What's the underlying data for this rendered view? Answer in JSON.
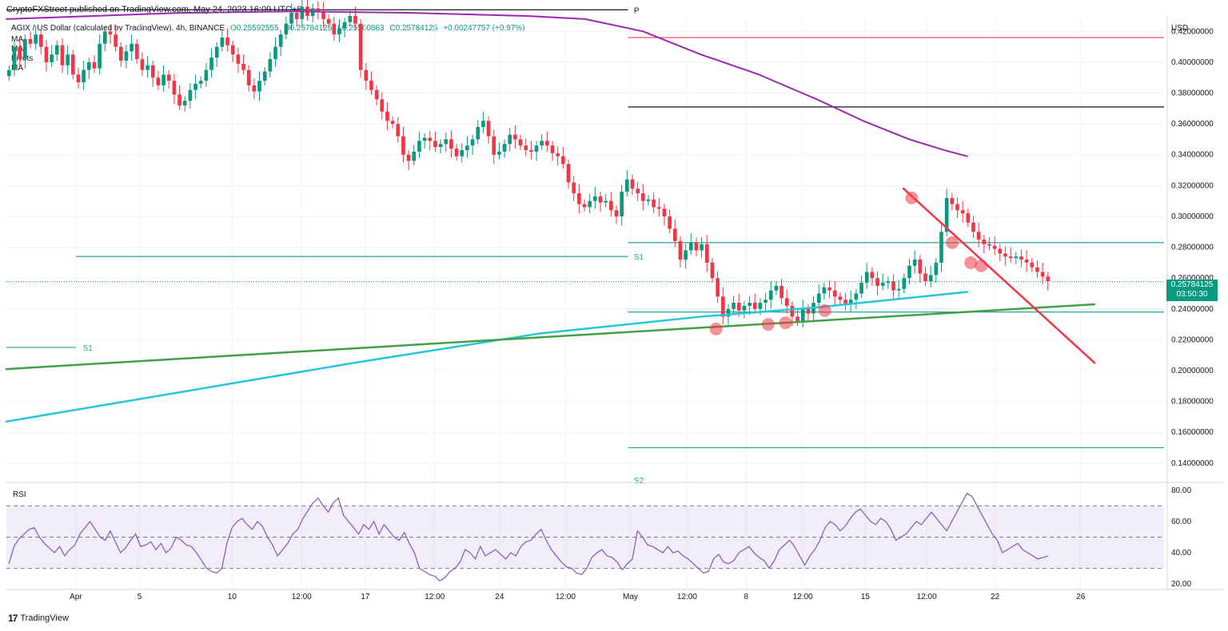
{
  "header": {
    "published": "CryptoFXStreet published on TradingView.com, May 24, 2023 16:09 UTC+8",
    "symbol": "AGIX / US Dollar (calculated by TradingView), 4h, BINANCE",
    "open": "O0.25592555",
    "high": "H0.25784125",
    "low": "L0.25560863",
    "close": "C0.25784125",
    "change": "+0.00247757 (+0.97%)",
    "indicators": [
      "MA",
      "MA",
      "Pivots",
      "MA"
    ]
  },
  "footer": {
    "brand": "TradingView"
  },
  "colors": {
    "up": "#089981",
    "down": "#f23645",
    "ma200": "#9c27b0",
    "ma_cyan": "#26c6da",
    "trend_green": "#43a047",
    "trend_red": "#f23645",
    "pivot_teal": "#26a69a",
    "pivot_r": "#f7525f",
    "pivot_black": "#131722",
    "rsi": "#7e57c2"
  },
  "chart_data": {
    "type": "candlestick",
    "currency_label": "USD",
    "y_ticks": [
      "0.42000000",
      "0.40000000",
      "0.38000000",
      "0.36000000",
      "0.34000000",
      "0.32000000",
      "0.30000000",
      "0.28000000",
      "0.26000000",
      "0.24000000",
      "0.22000000",
      "0.20000000",
      "0.18000000",
      "0.16000000",
      "0.14000000"
    ],
    "ylim": [
      0.128,
      0.43
    ],
    "x_ticks": [
      "Apr",
      "5",
      "10",
      "12:00",
      "17",
      "12:00",
      "24",
      "12:00",
      "May",
      "12:00",
      "8",
      "12:00",
      "15",
      "12:00",
      "22",
      "26"
    ],
    "last_price": "0.25784125",
    "countdown": "03:50:30",
    "pivot_labels": {
      "p": "P",
      "s1": "S1",
      "s1_old": "S1",
      "s2": "S2"
    },
    "pivot_levels": {
      "r1": 0.416,
      "p": 0.371,
      "s1_box": 0.283,
      "s1": 0.238,
      "s2": 0.15,
      "old_p": 0.434,
      "old_s1": 0.274,
      "old_s2": 0.215
    },
    "ma200_points": [
      [
        0,
        0.428
      ],
      [
        15,
        0.432
      ],
      [
        25,
        0.433
      ],
      [
        35,
        0.432
      ],
      [
        45,
        0.43
      ],
      [
        50,
        0.428
      ],
      [
        55,
        0.42
      ],
      [
        60,
        0.405
      ],
      [
        65,
        0.392
      ],
      [
        70,
        0.376
      ],
      [
        74,
        0.362
      ],
      [
        78,
        0.35
      ],
      [
        81,
        0.343
      ],
      [
        83,
        0.339
      ]
    ],
    "ma_cyan_points": [
      [
        0,
        0.167
      ],
      [
        30,
        0.205
      ],
      [
        46,
        0.224
      ],
      [
        60,
        0.235
      ],
      [
        70,
        0.241
      ],
      [
        83,
        0.251
      ]
    ],
    "green_trend": [
      [
        0,
        0.201
      ],
      [
        94,
        0.243
      ]
    ],
    "red_trend": [
      [
        77.5,
        0.318
      ],
      [
        94,
        0.205
      ]
    ],
    "touch_points": [
      [
        61.3,
        0.227
      ],
      [
        65.8,
        0.23
      ],
      [
        67.3,
        0.231
      ],
      [
        70.7,
        0.239
      ],
      [
        78.2,
        0.312
      ],
      [
        81.7,
        0.283
      ],
      [
        83.3,
        0.27
      ],
      [
        84.2,
        0.268
      ]
    ],
    "candles": [
      0.395,
      0.41,
      0.402,
      0.415,
      0.412,
      0.418,
      0.41,
      0.4,
      0.405,
      0.411,
      0.398,
      0.405,
      0.392,
      0.387,
      0.395,
      0.4,
      0.396,
      0.412,
      0.42,
      0.418,
      0.41,
      0.401,
      0.407,
      0.412,
      0.402,
      0.395,
      0.398,
      0.39,
      0.385,
      0.392,
      0.388,
      0.379,
      0.372,
      0.375,
      0.382,
      0.386,
      0.388,
      0.395,
      0.403,
      0.41,
      0.416,
      0.411,
      0.405,
      0.399,
      0.395,
      0.385,
      0.381,
      0.388,
      0.394,
      0.402,
      0.41,
      0.418,
      0.425,
      0.432,
      0.428,
      0.436,
      0.43,
      0.435,
      0.433,
      0.428,
      0.425,
      0.418,
      0.422,
      0.426,
      0.43,
      0.425,
      0.395,
      0.388,
      0.382,
      0.376,
      0.368,
      0.362,
      0.36,
      0.352,
      0.34,
      0.336,
      0.342,
      0.349,
      0.351,
      0.349,
      0.345,
      0.347,
      0.35,
      0.344,
      0.339,
      0.343,
      0.346,
      0.35,
      0.358,
      0.362,
      0.352,
      0.34,
      0.342,
      0.347,
      0.353,
      0.35,
      0.346,
      0.343,
      0.342,
      0.346,
      0.349,
      0.346,
      0.341,
      0.339,
      0.334,
      0.322,
      0.315,
      0.308,
      0.306,
      0.31,
      0.313,
      0.309,
      0.31,
      0.304,
      0.3,
      0.316,
      0.324,
      0.318,
      0.315,
      0.31,
      0.311,
      0.306,
      0.305,
      0.3,
      0.292,
      0.284,
      0.272,
      0.278,
      0.283,
      0.278,
      0.282,
      0.27,
      0.26,
      0.248,
      0.235,
      0.24,
      0.244,
      0.239,
      0.242,
      0.244,
      0.24,
      0.244,
      0.246,
      0.252,
      0.255,
      0.247,
      0.242,
      0.235,
      0.232,
      0.24,
      0.237,
      0.244,
      0.25,
      0.254,
      0.252,
      0.248,
      0.246,
      0.243,
      0.246,
      0.25,
      0.257,
      0.264,
      0.26,
      0.255,
      0.257,
      0.258,
      0.252,
      0.253,
      0.26,
      0.268,
      0.272,
      0.263,
      0.258,
      0.262,
      0.27,
      0.29,
      0.312,
      0.308,
      0.304,
      0.302,
      0.296,
      0.29,
      0.285,
      0.282,
      0.281,
      0.279,
      0.276,
      0.274,
      0.273,
      0.274,
      0.272,
      0.27,
      0.267,
      0.264,
      0.261,
      0.258
    ],
    "rsi": {
      "label": "RSI",
      "y_ticks": [
        "80.00",
        "60.00",
        "40.00",
        "20.00"
      ],
      "ylim": [
        17,
        84
      ],
      "upper": 70,
      "middle": 50,
      "lower": 30,
      "values": [
        33,
        44,
        49,
        52,
        55,
        56,
        50,
        46,
        43,
        40,
        44,
        38,
        42,
        45,
        52,
        56,
        60,
        55,
        50,
        48,
        54,
        47,
        40,
        43,
        48,
        52,
        44,
        45,
        47,
        42,
        46,
        40,
        43,
        50,
        48,
        45,
        44,
        40,
        35,
        30,
        28,
        27,
        30,
        46,
        56,
        60,
        62,
        58,
        55,
        60,
        57,
        50,
        45,
        38,
        42,
        46,
        52,
        55,
        62,
        67,
        72,
        75,
        70,
        66,
        72,
        75,
        64,
        60,
        56,
        52,
        58,
        55,
        60,
        52,
        58,
        54,
        50,
        48,
        53,
        46,
        40,
        30,
        28,
        26,
        25,
        22,
        24,
        28,
        30,
        34,
        42,
        40,
        36,
        44,
        38,
        40,
        42,
        39,
        36,
        40,
        38,
        44,
        47,
        48,
        52,
        55,
        48,
        42,
        38,
        34,
        31,
        30,
        27,
        26,
        30,
        37,
        40,
        42,
        38,
        37,
        34,
        29,
        33,
        36,
        54,
        50,
        45,
        44,
        42,
        40,
        44,
        40,
        41,
        38,
        36,
        33,
        30,
        27,
        28,
        36,
        39,
        34,
        33,
        35,
        40,
        42,
        44,
        40,
        37,
        35,
        30,
        35,
        42,
        45,
        48,
        44,
        38,
        32,
        38,
        42,
        48,
        56,
        60,
        58,
        54,
        57,
        62,
        66,
        68,
        64,
        60,
        58,
        62,
        60,
        55,
        48,
        50,
        52,
        56,
        60,
        58,
        62,
        66,
        62,
        58,
        54,
        60,
        66,
        72,
        78,
        76,
        70,
        64,
        58,
        52,
        48,
        40,
        42,
        44,
        46,
        42,
        40,
        38,
        36,
        37,
        38
      ]
    }
  }
}
